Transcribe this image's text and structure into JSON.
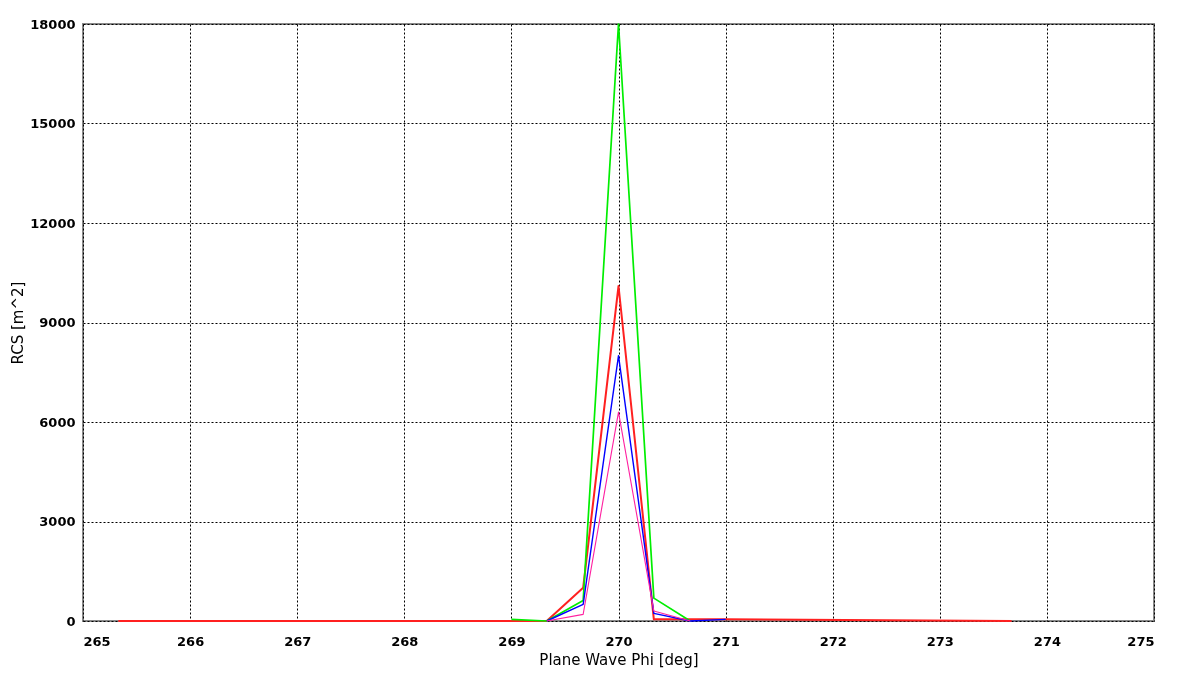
{
  "chart_data": {
    "type": "line",
    "xlabel": "Plane Wave Phi [deg]",
    "ylabel": "RCS [m^2]",
    "x": [
      265.33,
      269.0,
      269.33,
      269.67,
      270.0,
      270.33,
      270.67,
      271.0,
      273.67
    ],
    "series": [
      {
        "color": "#ff2020",
        "values": [
          0,
          0,
          0,
          1000,
          10100,
          50,
          50,
          50,
          0
        ]
      },
      {
        "color": "#00ee00",
        "x": [
          269.0,
          269.33,
          269.67,
          270.0,
          270.33,
          270.67
        ],
        "values": [
          50,
          0,
          620,
          18000,
          690,
          0
        ]
      },
      {
        "color": "#0000ff",
        "x": [
          269.33,
          269.67,
          270.0,
          270.33,
          270.67,
          271.0
        ],
        "values": [
          0,
          500,
          8000,
          230,
          0,
          50
        ]
      },
      {
        "color": "#ff20a0",
        "x": [
          269.33,
          269.67,
          270.0,
          270.33,
          270.67
        ],
        "values": [
          0,
          200,
          6300,
          300,
          0
        ]
      }
    ],
    "xlim": [
      265,
      275
    ],
    "xticks": [
      265,
      266,
      267,
      268,
      269,
      270,
      271,
      272,
      273,
      274,
      275
    ],
    "ylim": [
      0,
      18000
    ],
    "yticks": [
      0,
      3000,
      6000,
      9000,
      12000,
      15000,
      18000
    ],
    "grid": true,
    "line_style": "solid",
    "marker": "none"
  }
}
